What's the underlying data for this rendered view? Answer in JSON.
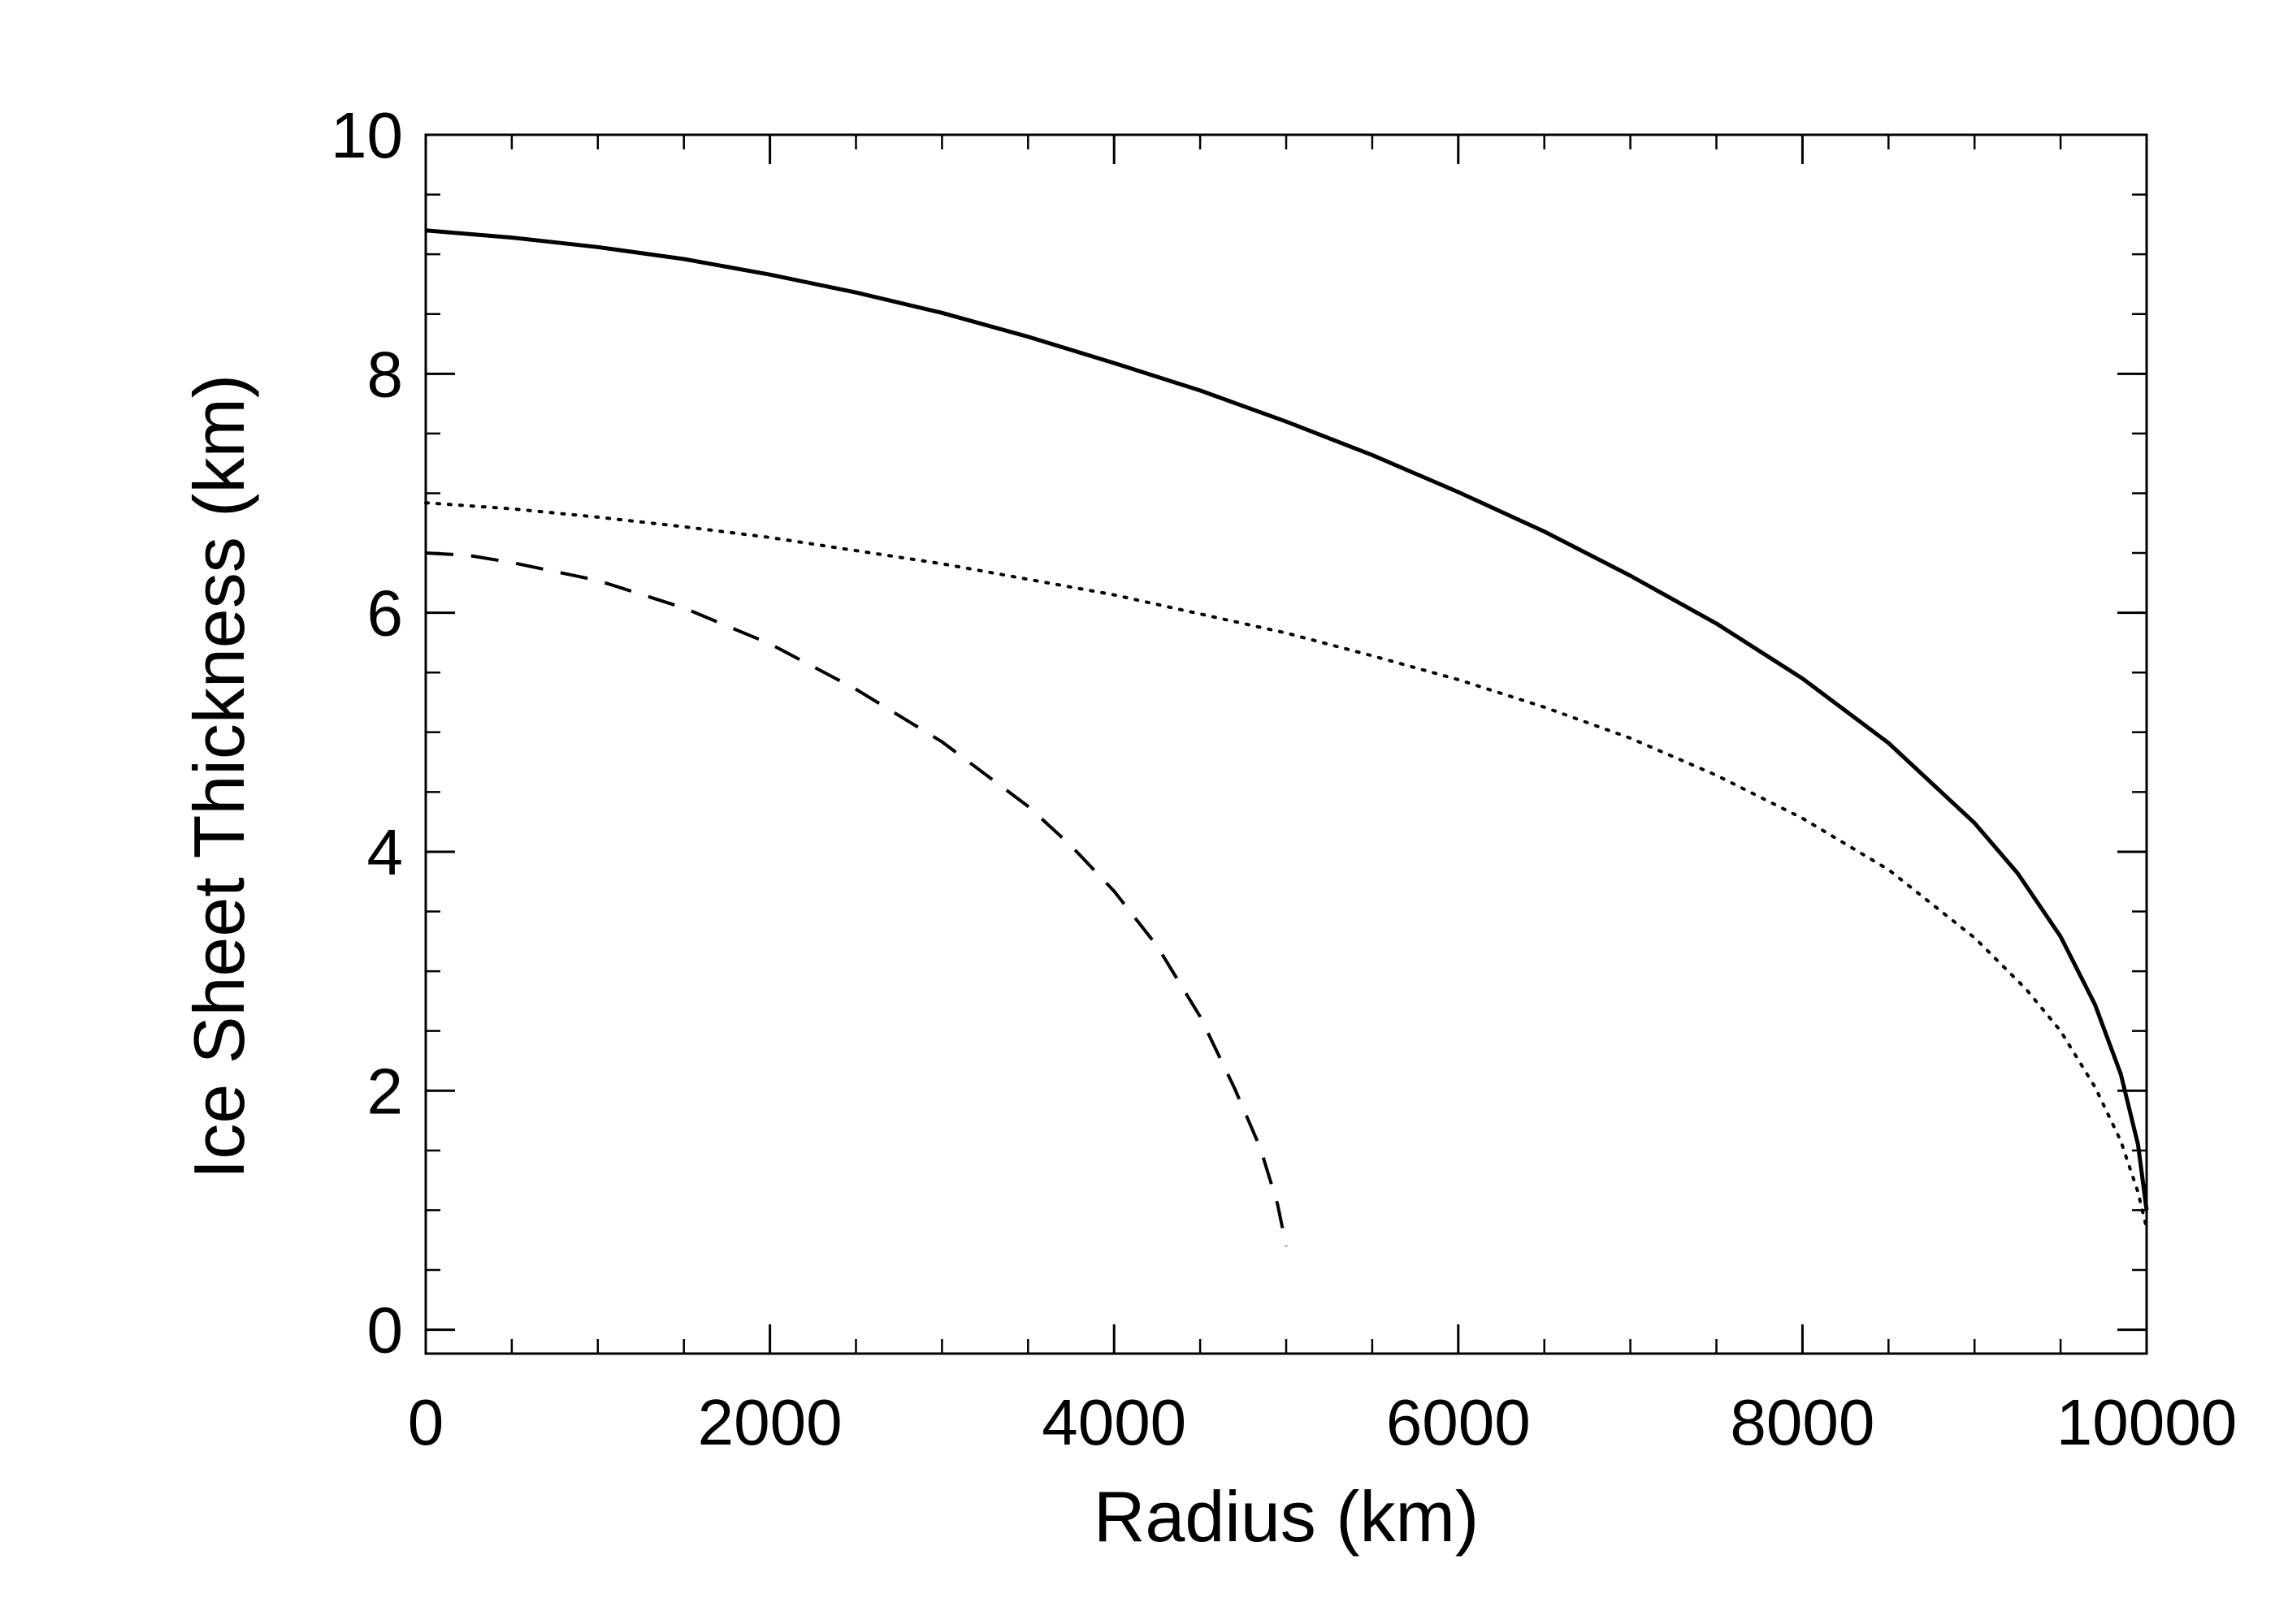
{
  "chart_data": {
    "type": "line",
    "title": "",
    "xlabel": "Radius (km)",
    "ylabel": "Ice Sheet Thickness (km)",
    "xlim": [
      0,
      10000
    ],
    "ylim": [
      -0.2,
      10
    ],
    "x_ticks": [
      0,
      2000,
      4000,
      6000,
      8000,
      10000
    ],
    "x_tick_labels": [
      "0",
      "2000",
      "4000",
      "6000",
      "8000",
      "10000"
    ],
    "x_minor_step": 500,
    "y_ticks": [
      0,
      2,
      4,
      6,
      8,
      10
    ],
    "y_tick_labels": [
      "0",
      "2",
      "4",
      "6",
      "8",
      "10"
    ],
    "y_minor_step": 0.5,
    "grid": false,
    "legend": "none",
    "series": [
      {
        "line_style": "solid",
        "color": "#000000",
        "x": [
          0,
          500,
          1000,
          1500,
          2000,
          2500,
          3000,
          3500,
          4000,
          4500,
          5000,
          5500,
          6000,
          6500,
          7000,
          7500,
          8000,
          8500,
          9000,
          9250,
          9500,
          9700,
          9850,
          9950,
          10000
        ],
        "y": [
          9.2,
          9.14,
          9.06,
          8.96,
          8.83,
          8.68,
          8.51,
          8.31,
          8.09,
          7.86,
          7.6,
          7.32,
          7.01,
          6.68,
          6.31,
          5.91,
          5.45,
          4.91,
          4.24,
          3.82,
          3.29,
          2.72,
          2.14,
          1.55,
          1.0
        ]
      },
      {
        "line_style": "dashed",
        "color": "#000000",
        "x": [
          0,
          250,
          500,
          1000,
          1500,
          2000,
          2500,
          3000,
          3500,
          3750,
          4000,
          4250,
          4500,
          4700,
          4850,
          4950,
          5000
        ],
        "y": [
          6.5,
          6.48,
          6.42,
          6.27,
          6.04,
          5.74,
          5.36,
          4.92,
          4.38,
          4.05,
          3.67,
          3.21,
          2.62,
          2.02,
          1.52,
          1.05,
          0.7
        ]
      },
      {
        "line_style": "dotted",
        "color": "#000000",
        "x": [
          0,
          500,
          1000,
          1500,
          2000,
          2500,
          3000,
          3500,
          4000,
          4500,
          5000,
          5500,
          6000,
          6500,
          7000,
          7500,
          8000,
          8500,
          9000,
          9300,
          9500,
          9700,
          9850,
          9950,
          10000
        ],
        "y": [
          6.92,
          6.87,
          6.8,
          6.72,
          6.63,
          6.52,
          6.41,
          6.28,
          6.15,
          5.99,
          5.83,
          5.64,
          5.44,
          5.21,
          4.95,
          4.64,
          4.28,
          3.85,
          3.28,
          2.85,
          2.5,
          2.03,
          1.58,
          1.15,
          0.85
        ]
      }
    ]
  }
}
